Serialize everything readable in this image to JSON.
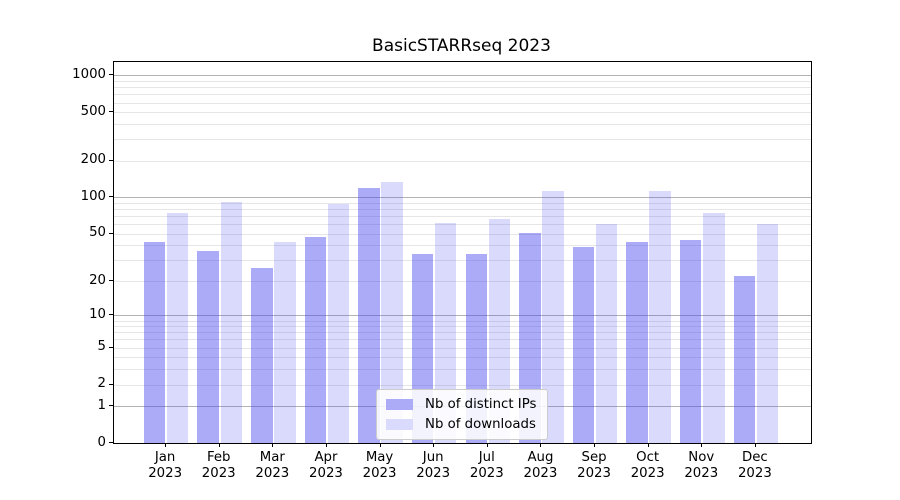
{
  "chart_data": {
    "type": "bar",
    "title": "BasicSTARRseq 2023",
    "categories": [
      "Jan 2023",
      "Feb 2023",
      "Mar 2023",
      "Apr 2023",
      "May 2023",
      "Jun 2023",
      "Jul 2023",
      "Aug 2023",
      "Sep 2023",
      "Oct 2023",
      "Nov 2023",
      "Dec 2023"
    ],
    "series": [
      {
        "name": "Nb of distinct IPs",
        "color": "rgba(68,68,238,0.45)",
        "legend_swatch": "#ababf7",
        "values": [
          43,
          36,
          26,
          47,
          120,
          34,
          34,
          51,
          39,
          43,
          44,
          22
        ]
      },
      {
        "name": "Nb of downloads",
        "color": "rgba(68,68,238,0.20)",
        "legend_swatch": "#dadafc",
        "values": [
          74,
          91,
          43,
          88,
          135,
          61,
          67,
          112,
          60,
          114,
          74,
          60
        ]
      }
    ],
    "xlabel": "",
    "ylabel": "",
    "yscale": "log(value+1)",
    "yticks": [
      0,
      1,
      2,
      5,
      10,
      20,
      50,
      100,
      200,
      500,
      1000
    ],
    "ylim": [
      0,
      1290
    ],
    "grid": {
      "major_values": [
        1,
        10,
        100,
        1000
      ],
      "major_color": "#b3b3b3",
      "minor_color": "#e6e6e6"
    },
    "legend_position": "lower center"
  }
}
